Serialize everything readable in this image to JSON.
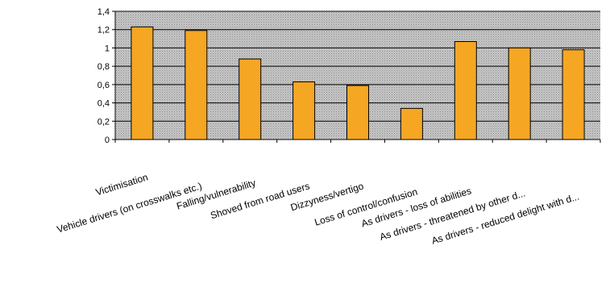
{
  "chart_data": {
    "type": "bar",
    "categories": [
      "Victimisation",
      "Vehicle drivers (on crosswalks etc.)",
      "Falling/vulnerability",
      "Shoved from road users",
      "Dizzyness/vertigo",
      "Loss of control/confusion",
      "As drivers - loss of abilities",
      "As drivers - threatened by other d...",
      "As drivers - reduced delight with d..."
    ],
    "values": [
      1.23,
      1.19,
      0.88,
      0.63,
      0.59,
      0.34,
      1.07,
      1.0,
      0.98
    ],
    "yticks": [
      "0",
      "0,2",
      "0,4",
      "0,6",
      "0,8",
      "1",
      "1,2",
      "1,4"
    ],
    "ylim": [
      0,
      1.4
    ],
    "grid": true,
    "legend": "none",
    "colors": {
      "bar_fill": "#F5A623",
      "bar_stroke": "#000000",
      "plot_background": "#BDBDBD",
      "gridline": "#000000"
    }
  }
}
